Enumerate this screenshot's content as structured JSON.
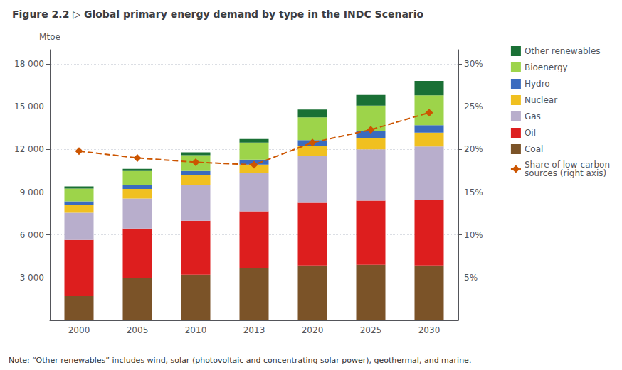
{
  "chart_data": {
    "type": "bar",
    "title": "Figure 2.2 ▷ Global primary energy demand by type in the INDC Scenario",
    "categories": [
      "2000",
      "2005",
      "2010",
      "2013",
      "2020",
      "2025",
      "2030"
    ],
    "stacked": true,
    "grid": true,
    "legend": "right",
    "ylabel": "Mtoe",
    "ylim": [
      0,
      19000
    ],
    "yticks": [
      {
        "value": 3000,
        "label": "3 000"
      },
      {
        "value": 6000,
        "label": "6 000"
      },
      {
        "value": 9000,
        "label": "9 000"
      },
      {
        "value": 12000,
        "label": "12 000"
      },
      {
        "value": 15000,
        "label": "15 000"
      },
      {
        "value": 18000,
        "label": "18 000"
      }
    ],
    "y2lim": [
      0,
      31.666
    ],
    "y2ticks": [
      {
        "value": 5,
        "label": "5%"
      },
      {
        "value": 10,
        "label": "10%"
      },
      {
        "value": 15,
        "label": "15%"
      },
      {
        "value": 20,
        "label": "20%"
      },
      {
        "value": 25,
        "label": "25%"
      },
      {
        "value": 30,
        "label": "30%"
      }
    ],
    "series": [
      {
        "name": "Coal",
        "color": "#7B5328",
        "values": [
          1700,
          2950,
          3200,
          3650,
          3850,
          3900,
          3850
        ]
      },
      {
        "name": "Oil",
        "color": "#DD1E1E",
        "values": [
          3950,
          3500,
          3800,
          4000,
          4400,
          4500,
          4600
        ]
      },
      {
        "name": "Gas",
        "color": "#B8AECC",
        "values": [
          1900,
          2100,
          2500,
          2700,
          3300,
          3600,
          3750
        ]
      },
      {
        "name": "Nuclear",
        "color": "#F0C020",
        "values": [
          580,
          680,
          680,
          580,
          680,
          800,
          980
        ]
      },
      {
        "name": "Hydro",
        "color": "#3A6BBF",
        "values": [
          220,
          250,
          310,
          350,
          420,
          470,
          520
        ]
      },
      {
        "name": "Bioenergy",
        "color": "#9DD44A",
        "values": [
          900,
          1000,
          1100,
          1200,
          1600,
          1800,
          2100
        ]
      },
      {
        "name": "Other renewables",
        "color": "#1A7035",
        "values": [
          150,
          150,
          200,
          250,
          550,
          750,
          1000
        ]
      },
      {
        "name": "Share of low-carbon\nsources (right axis)",
        "type": "line",
        "axis": "y2",
        "color": "#CC5500",
        "marker": "diamond",
        "line_style": "dashed",
        "values": [
          19.8,
          19.0,
          18.5,
          18.2,
          20.8,
          22.3,
          24.3
        ]
      }
    ],
    "annotations": [
      "Note: “Other renewables” includes wind, solar (photovoltaic and concentrating solar power), geothermal, and marine."
    ]
  }
}
